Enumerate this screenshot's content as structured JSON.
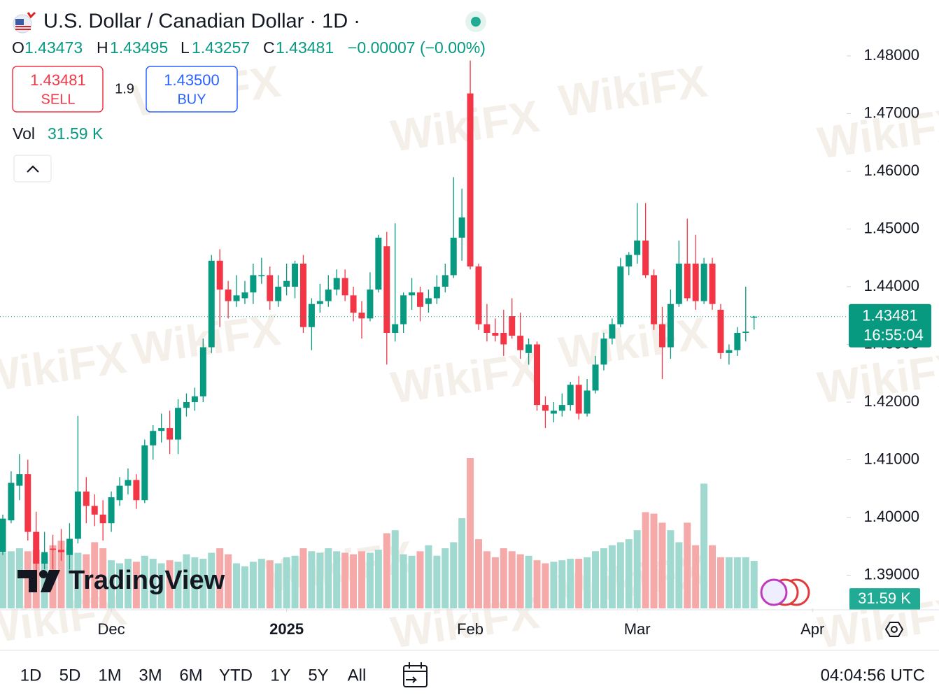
{
  "header": {
    "open_label": "O",
    "high_label": "H",
    "low_label": "L",
    "close_label": "C",
    "change": "−0.00007 (−0.00%)"
  },
  "trade": {
    "sell_price": "1.43481",
    "sell_label": "SELL",
    "spread": "1.9",
    "buy_price": "1.43500",
    "buy_label": "BUY"
  },
  "countdown": "16:55:04",
  "branding": "TradingView",
  "watermark": "WikiFX",
  "toolbar": {
    "ranges": [
      "1D",
      "5D",
      "1M",
      "3M",
      "6M",
      "YTD",
      "1Y",
      "5Y",
      "All"
    ],
    "clock": "04:04:56 UTC"
  },
  "chart_data": {
    "type": "candlestick",
    "title": "U.S. Dollar / Canadian Dollar · 1D ·",
    "up_color": "#089981",
    "down_color": "#f23645",
    "x": [
      0,
      1,
      2,
      3,
      4,
      5,
      6,
      7,
      8,
      9,
      10,
      11,
      12,
      13,
      14,
      15,
      16,
      17,
      18,
      19,
      20,
      21,
      22,
      23,
      24,
      25,
      26,
      27,
      28,
      29,
      30,
      31,
      32,
      33,
      34,
      35,
      36,
      37,
      38,
      39,
      40,
      41,
      42,
      43,
      44,
      45,
      46,
      47,
      48,
      49,
      50,
      51,
      52,
      53,
      54,
      55,
      56,
      57,
      58,
      59,
      60,
      61,
      62,
      63,
      64,
      65,
      66,
      67,
      68,
      69,
      70,
      71,
      72,
      73,
      74,
      75,
      76,
      77,
      78,
      79,
      80,
      81,
      82,
      83,
      84,
      85,
      86,
      87,
      88,
      89,
      90
    ],
    "open": [
      1.394,
      1.3995,
      1.4055,
      1.4075,
      1.3975,
      1.392,
      1.3946,
      1.3944,
      1.3935,
      1.3963,
      1.4045,
      1.402,
      1.4005,
      1.399,
      1.403,
      1.4055,
      1.4065,
      1.403,
      1.4125,
      1.415,
      1.4155,
      1.4135,
      1.419,
      1.42,
      1.421,
      1.4295,
      1.4445,
      1.4395,
      1.4375,
      1.438,
      1.439,
      1.4418,
      1.442,
      1.4375,
      1.44,
      1.44,
      1.444,
      1.433,
      1.437,
      1.4375,
      1.4395,
      1.4415,
      1.4385,
      1.4355,
      1.4345,
      1.4395,
      1.447,
      1.432,
      1.4335,
      1.4385,
      1.439,
      1.437,
      1.438,
      1.44,
      1.442,
      1.4485,
      1.4735,
      1.4435,
      1.4335,
      1.432,
      1.432,
      1.4349,
      1.4315,
      1.4285,
      1.43,
      1.4195,
      1.418,
      1.4185,
      1.4195,
      1.423,
      1.418,
      1.422,
      1.4265,
      1.431,
      1.4335,
      1.4435,
      1.4455,
      1.448,
      1.442,
      1.4335,
      1.4295,
      1.437,
      1.444,
      1.444,
      1.4375,
      1.444,
      1.436,
      1.4285,
      1.429,
      1.432,
      1.43473
    ],
    "high": [
      1.4005,
      1.408,
      1.411,
      1.41,
      1.401,
      1.3975,
      1.397,
      1.398,
      1.399,
      1.4176,
      1.407,
      1.404,
      1.403,
      1.4045,
      1.407,
      1.4085,
      1.4075,
      1.4135,
      1.416,
      1.418,
      1.4185,
      1.4205,
      1.4215,
      1.4225,
      1.431,
      1.4455,
      1.4465,
      1.441,
      1.442,
      1.441,
      1.444,
      1.445,
      1.4435,
      1.442,
      1.444,
      1.4445,
      1.4455,
      1.438,
      1.4405,
      1.442,
      1.443,
      1.443,
      1.44,
      1.4375,
      1.4425,
      1.449,
      1.4495,
      1.451,
      1.439,
      1.4415,
      1.44,
      1.4395,
      1.442,
      1.444,
      1.459,
      1.457,
      1.4792,
      1.444,
      1.437,
      1.4345,
      1.436,
      1.438,
      1.4355,
      1.431,
      1.4305,
      1.421,
      1.42,
      1.4215,
      1.4235,
      1.4245,
      1.424,
      1.428,
      1.432,
      1.4345,
      1.445,
      1.446,
      1.4545,
      1.4545,
      1.443,
      1.4365,
      1.4395,
      1.448,
      1.4518,
      1.449,
      1.445,
      1.445,
      1.437,
      1.43,
      1.433,
      1.44,
      1.43495
    ],
    "low": [
      1.3935,
      1.399,
      1.403,
      1.396,
      1.3905,
      1.391,
      1.391,
      1.3925,
      1.391,
      1.3955,
      1.399,
      1.3985,
      1.396,
      1.3975,
      1.402,
      1.404,
      1.4015,
      1.4025,
      1.41,
      1.413,
      1.411,
      1.411,
      1.4175,
      1.4185,
      1.42,
      1.4285,
      1.433,
      1.4345,
      1.4365,
      1.437,
      1.437,
      1.4405,
      1.436,
      1.4365,
      1.4385,
      1.438,
      1.432,
      1.429,
      1.4355,
      1.4365,
      1.4385,
      1.4375,
      1.434,
      1.431,
      1.434,
      1.439,
      1.4265,
      1.4305,
      1.432,
      1.436,
      1.434,
      1.4355,
      1.437,
      1.439,
      1.4415,
      1.4445,
      1.443,
      1.4325,
      1.4305,
      1.4305,
      1.428,
      1.431,
      1.4275,
      1.4265,
      1.4185,
      1.4155,
      1.4165,
      1.4175,
      1.4185,
      1.417,
      1.4175,
      1.4215,
      1.4255,
      1.43,
      1.433,
      1.442,
      1.444,
      1.4415,
      1.4325,
      1.424,
      1.4275,
      1.4365,
      1.4375,
      1.436,
      1.437,
      1.436,
      1.4275,
      1.4265,
      1.428,
      1.4305,
      1.43257
    ],
    "close": [
      1.3998,
      1.406,
      1.4075,
      1.3975,
      1.392,
      1.394,
      1.3944,
      1.394,
      1.3963,
      1.4045,
      1.402,
      1.4005,
      1.399,
      1.4035,
      1.4055,
      1.4065,
      1.403,
      1.4125,
      1.415,
      1.4155,
      1.4135,
      1.419,
      1.42,
      1.421,
      1.4295,
      1.4445,
      1.4395,
      1.4375,
      1.4385,
      1.439,
      1.442,
      1.442,
      1.4375,
      1.44,
      1.441,
      1.444,
      1.433,
      1.437,
      1.4375,
      1.4395,
      1.4415,
      1.4385,
      1.4355,
      1.4345,
      1.4395,
      1.4485,
      1.432,
      1.4335,
      1.4385,
      1.439,
      1.4365,
      1.438,
      1.44,
      1.442,
      1.4485,
      1.452,
      1.4435,
      1.4335,
      1.432,
      1.4315,
      1.43,
      1.4315,
      1.429,
      1.43,
      1.4195,
      1.4185,
      1.4185,
      1.4195,
      1.423,
      1.418,
      1.422,
      1.4265,
      1.431,
      1.4335,
      1.4435,
      1.4455,
      1.448,
      1.442,
      1.4335,
      1.4295,
      1.437,
      1.444,
      1.438,
      1.4375,
      1.444,
      1.437,
      1.4285,
      1.429,
      1.432,
      1.4322,
      1.43481
    ],
    "volume": {
      "name": "Vol",
      "axis": "y2",
      "up_color": "#a0d9cf",
      "down_color": "#f6a9a9",
      "values": [
        37000,
        38000,
        40000,
        38000,
        39000,
        36000,
        42000,
        45000,
        41000,
        37000,
        36000,
        44000,
        40000,
        32000,
        30000,
        33000,
        31000,
        35000,
        33000,
        30000,
        32000,
        31000,
        36000,
        34000,
        33000,
        37000,
        40000,
        36000,
        30000,
        28000,
        31000,
        33000,
        32000,
        30000,
        34000,
        35000,
        40000,
        38000,
        37000,
        40000,
        38000,
        37000,
        36000,
        38000,
        37000,
        39000,
        50000,
        52000,
        36000,
        35000,
        38000,
        42000,
        35000,
        40000,
        44000,
        60000,
        100000,
        46000,
        38000,
        34000,
        40000,
        38000,
        36000,
        35000,
        32000,
        30000,
        31000,
        32000,
        33000,
        33000,
        34000,
        38000,
        40000,
        42000,
        44000,
        46000,
        52000,
        64000,
        63000,
        57000,
        52000,
        44000,
        57000,
        42000,
        83000,
        42000,
        34000,
        34000,
        34000,
        34000,
        31590
      ],
      "value_labels": [
        null,
        null,
        null,
        null,
        null,
        null,
        null,
        null,
        null,
        null,
        null,
        null,
        null,
        null,
        null,
        null,
        null,
        null,
        null,
        null,
        null,
        null,
        null,
        null,
        null,
        null,
        null,
        null,
        null,
        null,
        null,
        null,
        null,
        null,
        null,
        null,
        null,
        null,
        null,
        null,
        null,
        null,
        null,
        null,
        null,
        null,
        null,
        null,
        null,
        null,
        null,
        null,
        null,
        null,
        null,
        null,
        null,
        null,
        null,
        null,
        null,
        null,
        null,
        null,
        null,
        null,
        null,
        null,
        null,
        null,
        null,
        null,
        null,
        null,
        null,
        null,
        null,
        null,
        null,
        null,
        null,
        null,
        null,
        null,
        null,
        null,
        null,
        null,
        null,
        null,
        "31.59 K"
      ]
    },
    "xlim": [
      -0.335,
      101.09
    ],
    "xticks": [
      {
        "value": 13,
        "label": "Dec"
      },
      {
        "value": 34,
        "label": "2025"
      },
      {
        "value": 56,
        "label": "Feb"
      },
      {
        "value": 76,
        "label": "Mar"
      },
      {
        "value": 97,
        "label": "Apr"
      }
    ],
    "ylim": [
      1.38424,
      1.48242
    ],
    "yticks": [
      {
        "value": 1.39,
        "label": "1.39000"
      },
      {
        "value": 1.4,
        "label": "1.40000"
      },
      {
        "value": 1.41,
        "label": "1.41000"
      },
      {
        "value": 1.42,
        "label": "1.42000"
      },
      {
        "value": 1.43,
        "label": "1.43000"
      },
      {
        "value": 1.44,
        "label": "1.44000"
      },
      {
        "value": 1.45,
        "label": "1.45000"
      },
      {
        "value": 1.46,
        "label": "1.46000"
      },
      {
        "value": 1.47,
        "label": "1.47000"
      },
      {
        "value": 1.48,
        "label": "1.48000"
      }
    ],
    "y2lim": [
      0,
      376700
    ]
  }
}
